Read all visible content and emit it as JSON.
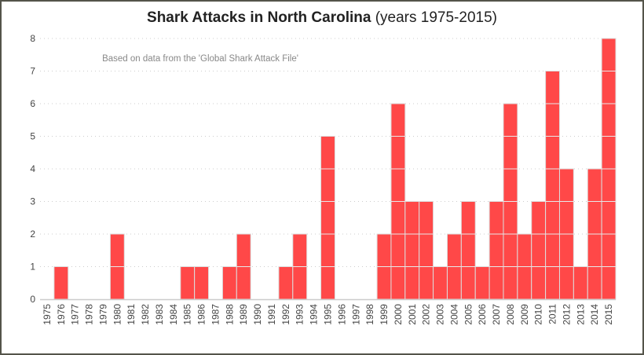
{
  "chart_data": {
    "type": "bar",
    "title": "Shark Attacks in North Carolina",
    "subtitle": "(years 1975-2015)",
    "annotation": "Based on data from the 'Global Shark Attack File'",
    "xlabel": "",
    "ylabel": "",
    "ylim": [
      0,
      8
    ],
    "yticks": [
      "0",
      "1",
      "2",
      "3",
      "4",
      "5",
      "6",
      "7",
      "8"
    ],
    "grid": "dotted horizontal",
    "bar_color": "#ff4848",
    "categories": [
      "1975",
      "1976",
      "1977",
      "1978",
      "1979",
      "1980",
      "1981",
      "1982",
      "1983",
      "1984",
      "1985",
      "1986",
      "1987",
      "1988",
      "1989",
      "1990",
      "1991",
      "1992",
      "1993",
      "1994",
      "1995",
      "1996",
      "1997",
      "1998",
      "1999",
      "2000",
      "2001",
      "2002",
      "2003",
      "2004",
      "2005",
      "2006",
      "2007",
      "2008",
      "2009",
      "2010",
      "2011",
      "2012",
      "2013",
      "2014",
      "2015"
    ],
    "values": [
      0,
      1,
      0,
      0,
      0,
      2,
      0,
      0,
      0,
      0,
      1,
      1,
      0,
      1,
      2,
      0,
      0,
      1,
      2,
      0,
      5,
      0,
      0,
      0,
      2,
      6,
      3,
      3,
      1,
      2,
      3,
      1,
      3,
      6,
      2,
      3,
      7,
      4,
      1,
      4,
      8
    ]
  }
}
